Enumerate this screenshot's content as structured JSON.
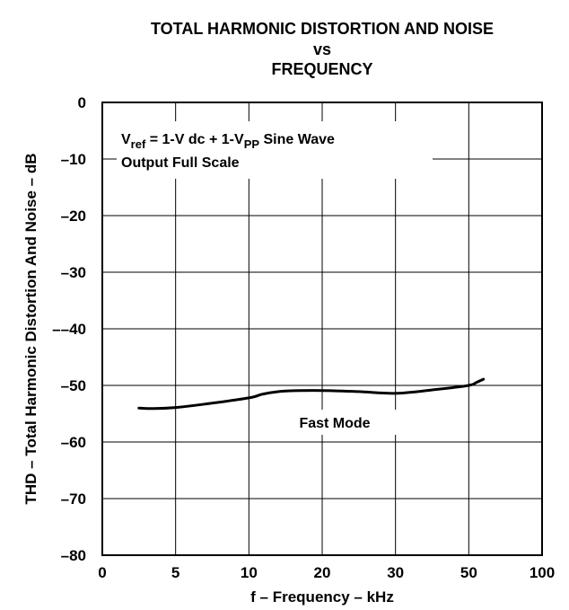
{
  "title_lines": [
    "TOTAL HARMONIC DISTORTION AND NOISE",
    "vs",
    "FREQUENCY"
  ],
  "chart_data": {
    "type": "line",
    "title": "TOTAL HARMONIC DISTORTION AND NOISE vs FREQUENCY",
    "xlabel": "f – Frequency – kHz",
    "ylabel": "THD – Total Harmonic Distortion And Noise – dB",
    "x_tick_labels": [
      "0",
      "5",
      "10",
      "20",
      "30",
      "50",
      "100"
    ],
    "y_ticks": [
      0,
      -10,
      -20,
      -30,
      -40,
      -50,
      -60,
      -70,
      -80
    ],
    "y_tick_labels": [
      "0",
      "–10",
      "–20",
      "–30",
      "––40",
      "–50",
      "–60",
      "–70",
      "–80"
    ],
    "ylim": [
      -80,
      0
    ],
    "grid": true,
    "annotation": {
      "line1_main": "V",
      "line1_sub": "ref",
      "line1_rest": " = 1-V dc + 1-V",
      "line1_sub2": "PP",
      "line1_end": " Sine Wave",
      "line2": "Output Full Scale"
    },
    "series": [
      {
        "name": "Fast Mode",
        "x": [
          2.5,
          3.5,
          5,
          7,
          10,
          12,
          15,
          20,
          25,
          30,
          40,
          50,
          55,
          60
        ],
        "y": [
          -54,
          -54.1,
          -53.9,
          -53.3,
          -52.2,
          -51.5,
          -51,
          -50.9,
          -51.1,
          -51.4,
          -50.8,
          -50,
          -49.5,
          -48.9
        ]
      }
    ]
  }
}
